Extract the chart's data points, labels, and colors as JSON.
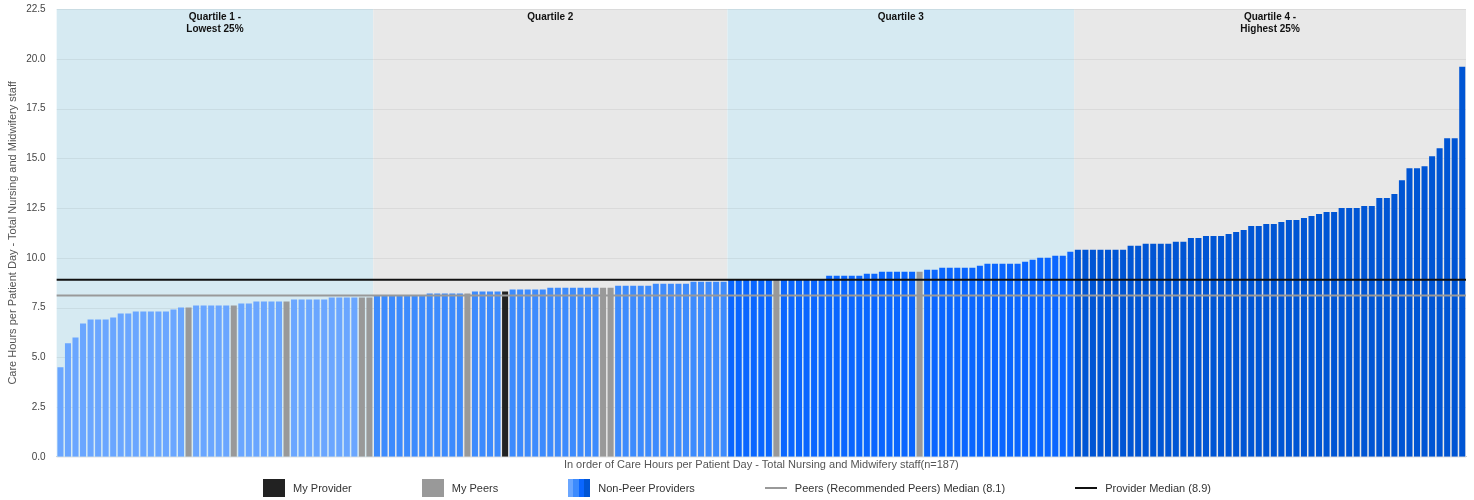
{
  "chart_data": {
    "type": "bar",
    "xlabel": "In order of Care Hours per Patient Day - Total Nursing and Midwifery staff(n=187)",
    "ylabel": "Care Hours per Patient Day - Total Nursing and Midwifery staff",
    "categories": [
      null,
      null,
      null,
      null,
      null,
      null,
      null,
      null,
      null,
      null,
      null,
      null,
      null,
      null,
      null,
      null,
      null,
      null,
      null,
      null,
      null,
      null,
      null,
      null,
      null,
      null,
      null,
      null,
      null,
      null,
      null,
      null,
      null,
      null,
      null,
      null,
      null,
      null,
      null,
      null,
      null,
      null,
      null,
      null,
      null,
      null,
      null,
      null,
      null,
      null,
      null,
      null,
      null,
      null,
      null,
      null,
      null,
      null,
      null,
      null,
      null,
      null,
      null,
      null,
      null,
      null,
      null,
      null,
      null,
      null,
      null,
      null,
      null,
      null,
      null,
      null,
      null,
      null,
      null,
      null,
      null,
      null,
      null,
      null,
      null,
      null,
      null,
      null,
      null,
      null,
      null,
      null,
      null,
      null,
      null,
      null,
      null,
      null,
      null,
      null,
      null,
      null,
      null,
      null,
      null,
      null,
      null,
      null,
      null,
      null,
      null,
      null,
      null,
      null,
      null,
      null,
      null,
      null,
      null,
      null,
      null,
      null,
      null,
      null,
      null,
      null,
      null,
      null,
      null,
      null,
      null,
      null,
      null,
      null,
      null,
      null,
      null,
      null,
      null,
      null,
      null,
      null,
      null,
      null,
      null,
      null,
      null,
      null,
      null,
      null,
      null,
      null,
      null,
      null,
      null,
      null,
      null,
      null,
      null,
      null,
      null,
      null,
      null,
      null,
      null,
      null,
      null,
      null,
      null,
      null,
      null,
      null,
      null,
      null,
      null,
      null,
      null,
      null,
      null,
      null,
      null,
      null,
      null,
      null,
      null,
      null,
      null
    ],
    "stacked": true,
    "series": [
      {
        "name": "My Provider",
        "color": "#222222",
        "values": [
          null,
          null,
          null,
          null,
          null,
          null,
          null,
          null,
          null,
          null,
          null,
          null,
          null,
          null,
          null,
          null,
          null,
          null,
          null,
          null,
          null,
          null,
          null,
          null,
          null,
          null,
          null,
          null,
          null,
          null,
          null,
          null,
          null,
          null,
          null,
          null,
          null,
          null,
          null,
          null,
          null,
          null,
          null,
          null,
          null,
          null,
          null,
          null,
          null,
          null,
          null,
          null,
          null,
          null,
          null,
          null,
          null,
          null,
          null,
          8.3,
          null,
          null,
          null,
          null,
          null,
          null,
          null,
          null,
          null,
          null,
          null,
          null,
          null,
          null,
          null,
          null,
          null,
          null,
          null,
          null,
          null,
          null,
          null,
          null,
          null,
          null,
          null,
          null,
          null,
          null,
          null,
          null,
          null,
          null,
          null,
          null,
          null,
          null,
          null,
          null,
          null,
          null,
          null,
          null,
          null,
          null,
          null,
          null,
          null,
          null,
          null,
          null,
          null,
          null,
          null,
          null,
          null,
          null,
          null,
          null,
          null,
          null,
          null,
          null,
          null,
          null,
          null,
          null,
          null,
          null,
          null,
          null,
          null,
          null,
          null,
          null,
          null,
          null,
          null,
          null,
          null,
          null,
          null,
          null,
          null,
          null,
          null,
          null,
          null,
          null,
          null,
          null,
          null,
          null,
          null,
          null,
          null,
          null,
          null,
          null,
          null,
          null,
          null,
          null,
          null,
          null,
          null,
          null,
          null,
          null,
          null,
          null,
          null,
          null,
          null,
          null,
          null,
          null,
          null,
          null,
          null,
          null,
          null,
          null,
          null,
          null,
          null
        ]
      },
      {
        "name": "My Peers",
        "color": "#999999",
        "values": [
          null,
          null,
          null,
          null,
          null,
          null,
          null,
          null,
          null,
          null,
          null,
          null,
          null,
          null,
          null,
          null,
          null,
          7.5,
          null,
          null,
          null,
          null,
          null,
          7.6,
          null,
          null,
          null,
          null,
          null,
          null,
          7.8,
          null,
          null,
          null,
          null,
          null,
          null,
          null,
          null,
          null,
          8.0,
          8.0,
          null,
          null,
          null,
          null,
          null,
          null,
          null,
          null,
          null,
          null,
          null,
          null,
          8.2,
          null,
          null,
          null,
          null,
          null,
          null,
          null,
          null,
          null,
          null,
          null,
          null,
          null,
          null,
          null,
          null,
          null,
          8.5,
          8.5,
          null,
          null,
          null,
          null,
          null,
          null,
          null,
          null,
          null,
          null,
          null,
          null,
          null,
          null,
          null,
          null,
          null,
          null,
          null,
          null,
          null,
          8.9,
          null,
          null,
          null,
          null,
          null,
          null,
          null,
          null,
          null,
          null,
          null,
          null,
          null,
          null,
          null,
          null,
          null,
          null,
          9.3,
          null,
          null,
          null,
          null,
          null,
          null,
          null,
          null,
          null,
          null,
          null,
          null,
          null,
          null,
          null,
          null,
          null,
          null,
          null,
          null,
          null,
          null,
          null,
          null,
          null,
          null,
          null,
          null,
          null,
          null,
          null,
          null,
          null,
          null,
          null,
          null,
          null,
          null,
          null,
          null,
          null,
          null,
          null,
          null,
          null,
          null,
          null,
          null,
          null,
          null,
          null,
          null,
          null,
          null,
          null,
          null,
          null,
          null,
          null,
          null,
          null,
          null,
          null,
          null,
          null,
          null,
          null,
          null,
          null,
          null,
          null,
          null
        ]
      },
      {
        "name": "Non-Peer Providers",
        "values": [
          4.5,
          5.7,
          6.0,
          6.7,
          6.9,
          6.9,
          6.9,
          7.0,
          7.2,
          7.2,
          7.3,
          7.3,
          7.3,
          7.3,
          7.3,
          7.4,
          7.5,
          null,
          7.6,
          7.6,
          7.6,
          7.6,
          7.6,
          null,
          7.7,
          7.7,
          7.8,
          7.8,
          7.8,
          7.8,
          null,
          7.9,
          7.9,
          7.9,
          7.9,
          7.9,
          8.0,
          8.0,
          8.0,
          8.0,
          null,
          null,
          8.1,
          8.1,
          8.1,
          8.1,
          8.1,
          8.1,
          8.1,
          8.2,
          8.2,
          8.2,
          8.2,
          8.2,
          null,
          8.3,
          8.3,
          8.3,
          8.3,
          null,
          8.4,
          8.4,
          8.4,
          8.4,
          8.4,
          8.5,
          8.5,
          8.5,
          8.5,
          8.5,
          8.5,
          8.5,
          null,
          null,
          8.6,
          8.6,
          8.6,
          8.6,
          8.6,
          8.7,
          8.7,
          8.7,
          8.7,
          8.7,
          8.8,
          8.8,
          8.8,
          8.8,
          8.8,
          8.9,
          8.9,
          8.9,
          8.9,
          8.9,
          8.9,
          null,
          8.9,
          8.9,
          8.9,
          8.9,
          8.9,
          8.9,
          9.1,
          9.1,
          9.1,
          9.1,
          9.1,
          9.2,
          9.2,
          9.3,
          9.3,
          9.3,
          9.3,
          9.3,
          null,
          9.4,
          9.4,
          9.5,
          9.5,
          9.5,
          9.5,
          9.5,
          9.6,
          9.7,
          9.7,
          9.7,
          9.7,
          9.7,
          9.8,
          9.9,
          10.0,
          10.0,
          10.1,
          10.1,
          10.3,
          10.4,
          10.4,
          10.4,
          10.4,
          10.4,
          10.4,
          10.4,
          10.6,
          10.6,
          10.7,
          10.7,
          10.7,
          10.7,
          10.8,
          10.8,
          11.0,
          11.0,
          11.1,
          11.1,
          11.1,
          11.2,
          11.3,
          11.4,
          11.6,
          11.6,
          11.7,
          11.7,
          11.8,
          11.9,
          11.9,
          12.0,
          12.1,
          12.2,
          12.3,
          12.3,
          12.5,
          12.5,
          12.5,
          12.6,
          12.6,
          13.0,
          13.0,
          13.2,
          13.9,
          14.5,
          14.5,
          14.6,
          15.1,
          15.5,
          16.0,
          16.0,
          19.6
        ],
        "colors": [
          "#6aa6ff",
          "#6aa6ff",
          "#6aa6ff",
          "#6aa6ff",
          "#6aa6ff",
          "#6aa6ff",
          "#6aa6ff",
          "#6aa6ff",
          "#6aa6ff",
          "#6aa6ff",
          "#6aa6ff",
          "#6aa6ff",
          "#6aa6ff",
          "#6aa6ff",
          "#6aa6ff",
          "#6aa6ff",
          "#6aa6ff",
          null,
          "#6aa6ff",
          "#6aa6ff",
          "#6aa6ff",
          "#6aa6ff",
          "#6aa6ff",
          null,
          "#6aa6ff",
          "#6aa6ff",
          "#6aa6ff",
          "#6aa6ff",
          "#6aa6ff",
          "#6aa6ff",
          null,
          "#6aa6ff",
          "#6aa6ff",
          "#6aa6ff",
          "#6aa6ff",
          "#6aa6ff",
          "#6aa6ff",
          "#6aa6ff",
          "#6aa6ff",
          "#6aa6ff",
          null,
          null,
          "#3d8bfd",
          "#3d8bfd",
          "#3d8bfd",
          "#3d8bfd",
          "#3d8bfd",
          "#3d8bfd",
          "#3d8bfd",
          "#3d8bfd",
          "#3d8bfd",
          "#3d8bfd",
          "#3d8bfd",
          "#3d8bfd",
          null,
          "#3d8bfd",
          "#3d8bfd",
          "#3d8bfd",
          "#3d8bfd",
          null,
          "#3d8bfd",
          "#3d8bfd",
          "#3d8bfd",
          "#3d8bfd",
          "#3d8bfd",
          "#3d8bfd",
          "#3d8bfd",
          "#3d8bfd",
          "#3d8bfd",
          "#3d8bfd",
          "#3d8bfd",
          "#3d8bfd",
          null,
          null,
          "#3d8bfd",
          "#3d8bfd",
          "#3d8bfd",
          "#3d8bfd",
          "#3d8bfd",
          "#3d8bfd",
          "#3d8bfd",
          "#3d8bfd",
          "#3d8bfd",
          "#3d8bfd",
          "#3d8bfd",
          "#3d8bfd",
          "#3d8bfd",
          "#3d8bfd",
          "#3d8bfd",
          "#0a66ff",
          "#0a66ff",
          "#0a66ff",
          "#0a66ff",
          "#0a66ff",
          "#0a66ff",
          null,
          "#0a66ff",
          "#0a66ff",
          "#0a66ff",
          "#0a66ff",
          "#0a66ff",
          "#0a66ff",
          "#0a66ff",
          "#0a66ff",
          "#0a66ff",
          "#0a66ff",
          "#0a66ff",
          "#0a66ff",
          "#0a66ff",
          "#0a66ff",
          "#0a66ff",
          "#0a66ff",
          "#0a66ff",
          "#0a66ff",
          null,
          "#0a66ff",
          "#0a66ff",
          "#0a66ff",
          "#0a66ff",
          "#0a66ff",
          "#0a66ff",
          "#0a66ff",
          "#0a66ff",
          "#0a66ff",
          "#0a66ff",
          "#0a66ff",
          "#0a66ff",
          "#0a66ff",
          "#0a66ff",
          "#0a66ff",
          "#0a66ff",
          "#0a66ff",
          "#0a66ff",
          "#0a66ff",
          "#0a66ff",
          "#0055d4",
          "#0055d4",
          "#0055d4",
          "#0055d4",
          "#0055d4",
          "#0055d4",
          "#0055d4",
          "#0055d4",
          "#0055d4",
          "#0055d4",
          "#0055d4",
          "#0055d4",
          "#0055d4",
          "#0055d4",
          "#0055d4",
          "#0055d4",
          "#0055d4",
          "#0055d4",
          "#0055d4",
          "#0055d4",
          "#0055d4",
          "#0055d4",
          "#0055d4",
          "#0055d4",
          "#0055d4",
          "#0055d4",
          "#0055d4",
          "#0055d4",
          "#0055d4",
          "#0055d4",
          "#0055d4",
          "#0055d4",
          "#0055d4",
          "#0055d4",
          "#0055d4",
          "#0055d4",
          "#0055d4",
          "#0055d4",
          "#0055d4",
          "#0055d4",
          "#0055d4",
          "#0055d4",
          "#0055d4",
          "#0055d4",
          "#0055d4",
          "#0055d4",
          "#0055d4",
          "#0055d4",
          "#0055d4",
          "#0055d4",
          "#0055d4",
          "#0055d4"
        ]
      }
    ],
    "annotations": [
      "Quartile 1 -\nLowest 25%",
      "Quartile 2",
      "Quartile 3",
      "Quartile 4 -\nHighest 25%"
    ],
    "ref_lines": [
      {
        "axis": "y",
        "value": 8.1,
        "label": "Peers (Recommended Peers) Median (8.1)",
        "color": "#999999"
      },
      {
        "axis": "y",
        "value": 8.9,
        "label": "Provider Median (8.9)",
        "color": "#111111"
      }
    ],
    "ylim": [
      0,
      22.5
    ],
    "yticks": [
      {
        "value": 0,
        "label": "0.0"
      },
      {
        "value": 2.5,
        "label": "2.5"
      },
      {
        "value": 5,
        "label": "5.0"
      },
      {
        "value": 7.5,
        "label": "7.5"
      },
      {
        "value": 10,
        "label": "10.0"
      },
      {
        "value": 12.5,
        "label": "12.5"
      },
      {
        "value": 15,
        "label": "15.0"
      },
      {
        "value": 17.5,
        "label": "17.5"
      },
      {
        "value": 20,
        "label": "20.0"
      },
      {
        "value": 22.5,
        "label": "22.5"
      }
    ],
    "tick_labels": "y",
    "grid": "y",
    "legend": "bottom"
  }
}
